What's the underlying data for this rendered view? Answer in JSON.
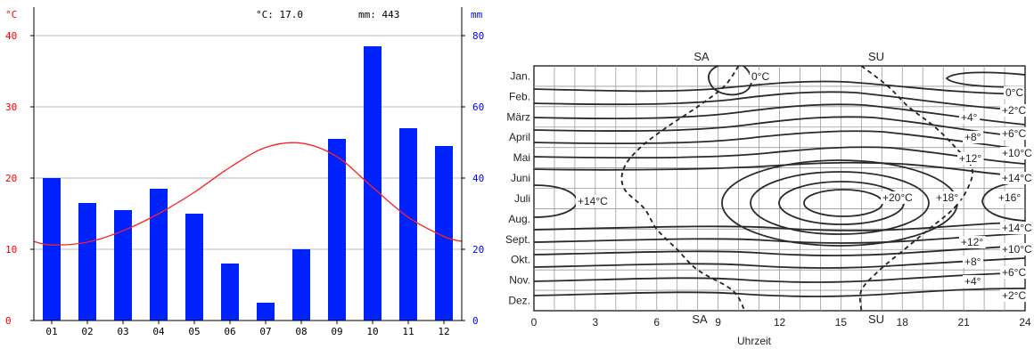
{
  "chart_data": [
    {
      "type": "bar",
      "title": "",
      "header": {
        "temp_label": "°C: 17.0",
        "precip_label": "mm: 443"
      },
      "y_left": {
        "unit": "°C",
        "ticks": [
          "0",
          "10",
          "20",
          "30",
          "40"
        ],
        "ylim": [
          0,
          44
        ],
        "color": "#ff0000"
      },
      "y_right": {
        "unit": "mm",
        "ticks": [
          "0",
          "20",
          "40",
          "60",
          "80"
        ],
        "ylim": [
          0,
          88
        ],
        "color": "#0000ff"
      },
      "categories": [
        "01",
        "02",
        "03",
        "04",
        "05",
        "06",
        "07",
        "08",
        "09",
        "10",
        "11",
        "12"
      ],
      "series": [
        {
          "kind": "bar",
          "axis": "right",
          "color": "#0022ff",
          "values": [
            40,
            33,
            31,
            37,
            30,
            16,
            5,
            20,
            51,
            77,
            54,
            49
          ]
        },
        {
          "kind": "line",
          "axis": "left",
          "color": "#ff2020",
          "values": [
            10.6,
            11,
            12.6,
            15,
            18,
            21.5,
            24.3,
            24.9,
            23,
            18.7,
            14.5,
            11.8
          ],
          "edge_values": [
            11.1,
            11.1
          ]
        }
      ],
      "grid": true,
      "legend": "none"
    },
    {
      "type": "contour",
      "title": "",
      "xlabel": "Uhrzeit",
      "x_ticks": [
        "0",
        "3",
        "6",
        "9",
        "12",
        "15",
        "18",
        "21",
        "24"
      ],
      "xlim": [
        0,
        24
      ],
      "y_ticks": [
        "Jan.",
        "Feb.",
        "März",
        "April",
        "Mai",
        "Juni",
        "Juli",
        "Aug.",
        "Sept.",
        "Okt.",
        "Nov.",
        "Dez."
      ],
      "top_labels": [
        "SA",
        "SU"
      ],
      "bottom_labels": [
        "SA",
        "SU"
      ],
      "sunrise_hours": [
        10,
        9.3,
        8,
        6.5,
        5.2,
        4.4,
        4.4,
        5.4,
        6,
        7,
        8,
        9.7,
        10.3
      ],
      "sunset_hours": [
        16,
        17.3,
        18.3,
        19.6,
        20.6,
        21.4,
        21.2,
        20.5,
        19.3,
        18.1,
        16.9,
        16,
        16
      ],
      "annotations": [
        "0°C",
        "0°C",
        "+2°C",
        "+4°",
        "+6°C",
        "+8°",
        "+10°C",
        "+12°",
        "+14°C",
        "+14°C",
        "+20°C",
        "+18°",
        "+16°",
        "+14°C",
        "+12°",
        "+10°C",
        "+8°",
        "+6°C",
        "+4°",
        "+2°C"
      ],
      "grid": true
    }
  ]
}
